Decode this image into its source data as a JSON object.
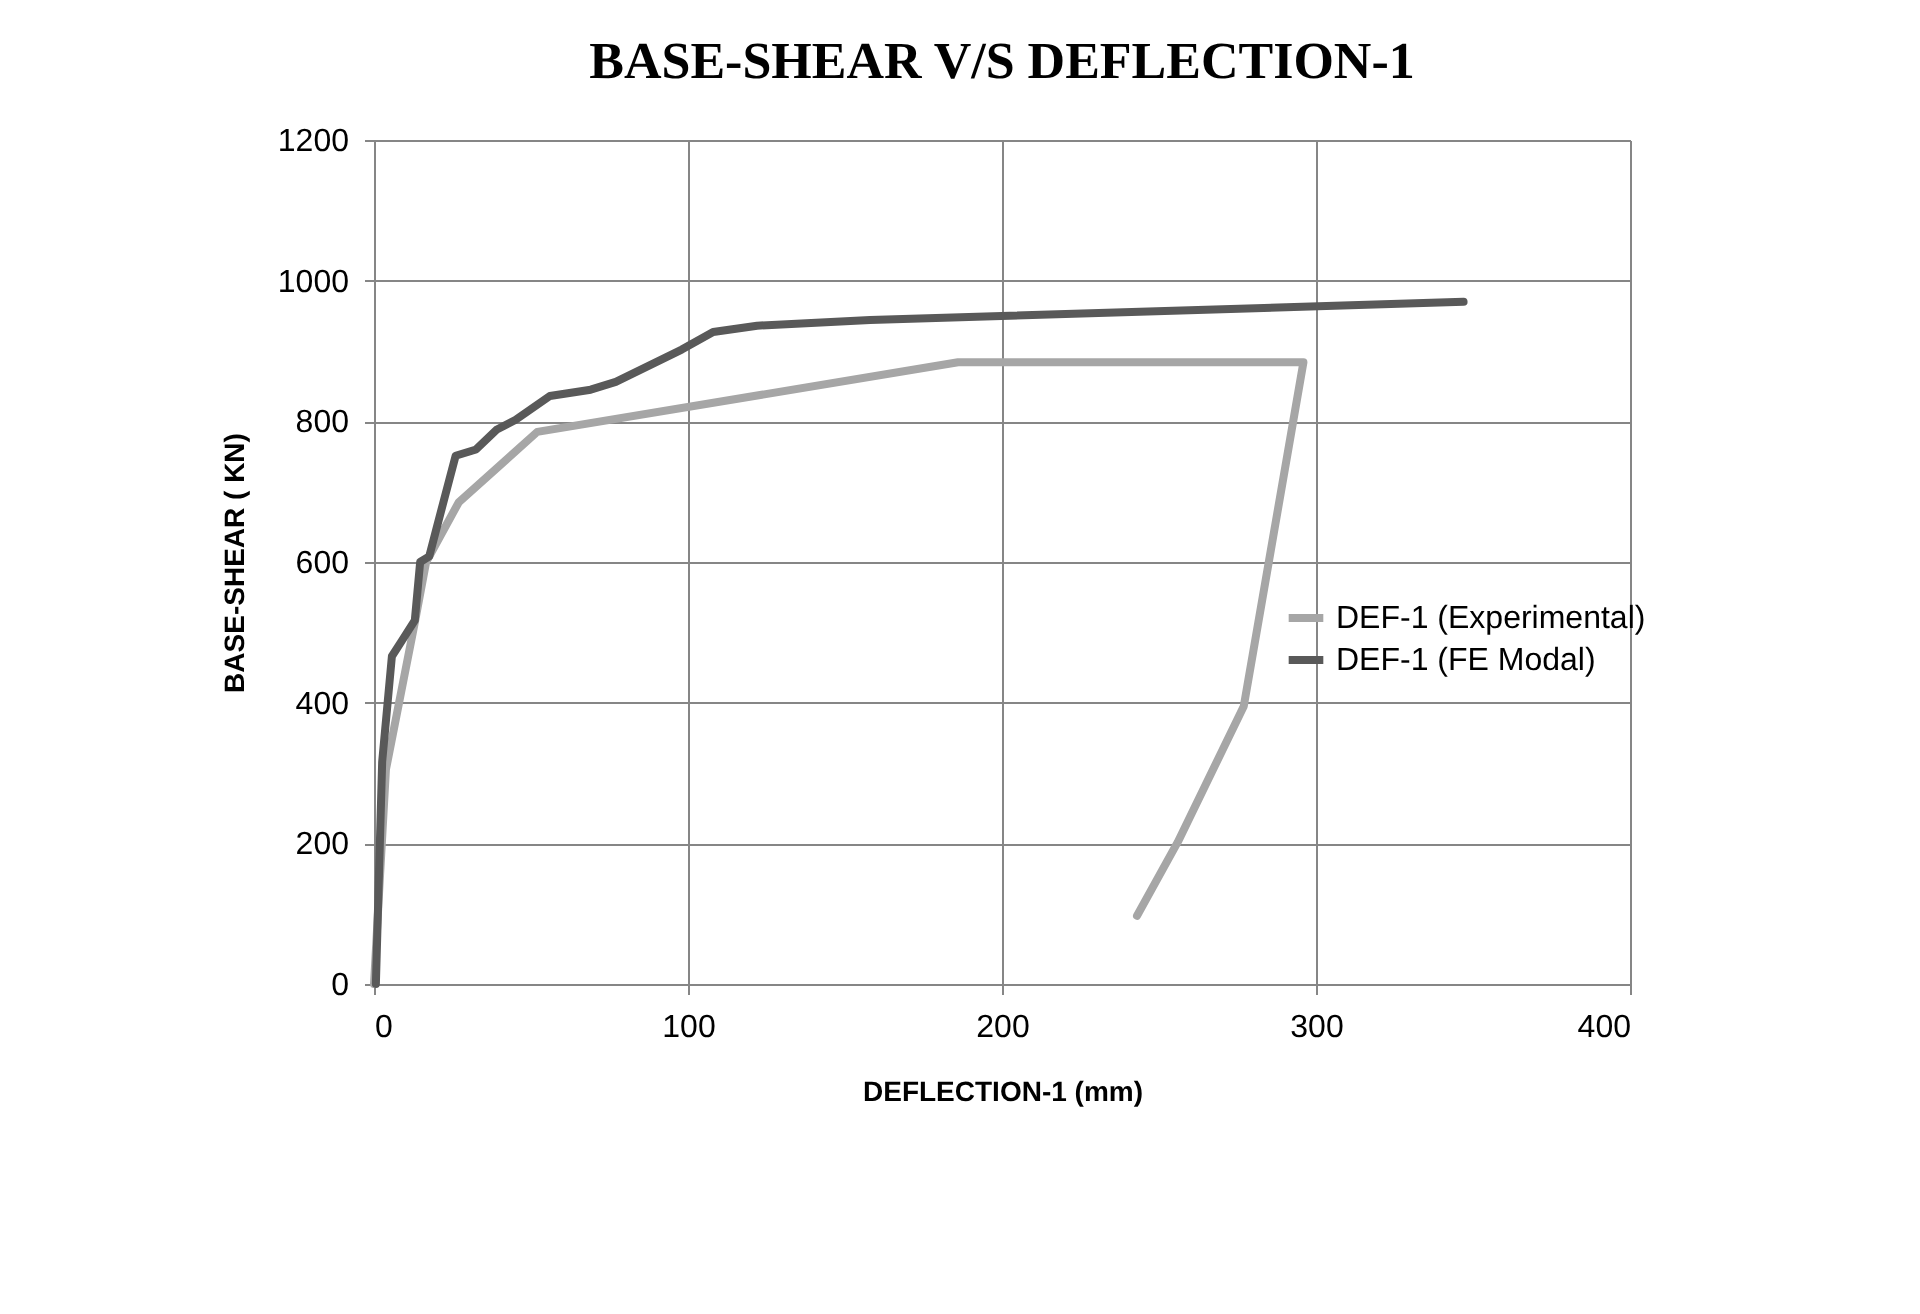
{
  "chart_data": {
    "type": "line",
    "title": "BASE-SHEAR V/S DEFLECTION-1",
    "xlabel": "DEFLECTION-1 (mm)",
    "ylabel": "BASE-SHEAR ( KN)",
    "xlim": [
      0,
      400
    ],
    "xticks": [
      0,
      100,
      200,
      300,
      400
    ],
    "ylim": [
      0,
      1200
    ],
    "yticks": [
      0,
      200,
      400,
      600,
      800,
      1000,
      1200
    ],
    "grid": true,
    "legend": "right",
    "marker": "none",
    "line_style": "solid",
    "series": [
      {
        "name": "DEF-1 (Experimental)",
        "color": "#a6a6a6",
        "x": [
          0,
          3.8,
          13,
          16.6,
          27,
          52,
          186,
          296,
          277,
          256,
          243
        ],
        "values": [
          0,
          305,
          514,
          600,
          685,
          785,
          884,
          884,
          395,
          202,
          97
        ]
      },
      {
        "name": "DEF-1 (FE Modal)",
        "color": "#595959",
        "x": [
          0.6,
          2.6,
          5.7,
          9,
          13,
          14.7,
          17.6,
          19.8,
          26,
          32.5,
          39,
          45,
          56,
          69,
          77,
          98,
          108,
          122,
          158,
          347
        ],
        "values": [
          0,
          316,
          466,
          489,
          517,
          600,
          608,
          646,
          751,
          760,
          788,
          802,
          836,
          845,
          856,
          902,
          927,
          936,
          944,
          970
        ]
      }
    ]
  }
}
